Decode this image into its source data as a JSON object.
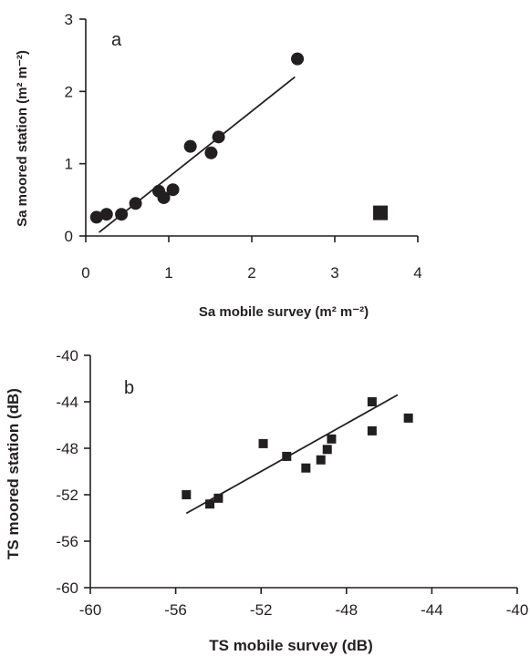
{
  "colors": {
    "ink": "#231f20",
    "background": "#ffffff"
  },
  "chart_data": [
    {
      "panel": "a",
      "type": "scatter",
      "panel_label": "a",
      "xlabel": "Sa  mobile survey (m² m⁻²)",
      "ylabel": "Sa moored station  (m² m⁻²)",
      "xlim": [
        0,
        4
      ],
      "ylim": [
        0,
        3
      ],
      "xticks": [
        "0",
        "1",
        "2",
        "3",
        "4"
      ],
      "yticks": [
        "0",
        "1",
        "2",
        "3"
      ],
      "grid": false,
      "legend": "none",
      "series": [
        {
          "marker": "circle",
          "x": [
            0.13,
            0.25,
            0.43,
            0.6,
            0.88,
            0.94,
            1.05,
            1.26,
            1.51,
            1.6,
            2.55
          ],
          "y": [
            0.26,
            0.3,
            0.3,
            0.45,
            0.62,
            0.53,
            0.64,
            1.24,
            1.15,
            1.37,
            2.45
          ]
        },
        {
          "marker": "square",
          "x": [
            3.55
          ],
          "y": [
            0.32
          ]
        }
      ],
      "trendline": {
        "x": [
          0.16,
          2.52
        ],
        "y": [
          0.05,
          2.2
        ]
      }
    },
    {
      "panel": "b",
      "type": "scatter",
      "panel_label": "b",
      "xlabel": "TS mobile survey (dB)",
      "ylabel": "TS moored station (dB)",
      "xlim": [
        -60,
        -40
      ],
      "ylim": [
        -60,
        -40
      ],
      "xticks": [
        "-60",
        "-56",
        "-52",
        "-48",
        "-44",
        "-40"
      ],
      "yticks": [
        "-60",
        "-56",
        "-52",
        "-48",
        "-44",
        "-40"
      ],
      "grid": false,
      "legend": "none",
      "series": [
        {
          "marker": "square",
          "x": [
            -55.5,
            -54.4,
            -54.0,
            -51.9,
            -50.8,
            -49.9,
            -49.2,
            -48.9,
            -48.7,
            -46.8,
            -46.8,
            -45.1
          ],
          "y": [
            -52.0,
            -52.8,
            -52.3,
            -47.6,
            -48.7,
            -49.7,
            -49.0,
            -48.1,
            -47.2,
            -44.0,
            -46.5,
            -45.4
          ]
        }
      ],
      "trendline": {
        "x": [
          -55.5,
          -45.6
        ],
        "y": [
          -53.6,
          -43.4
        ]
      }
    }
  ]
}
